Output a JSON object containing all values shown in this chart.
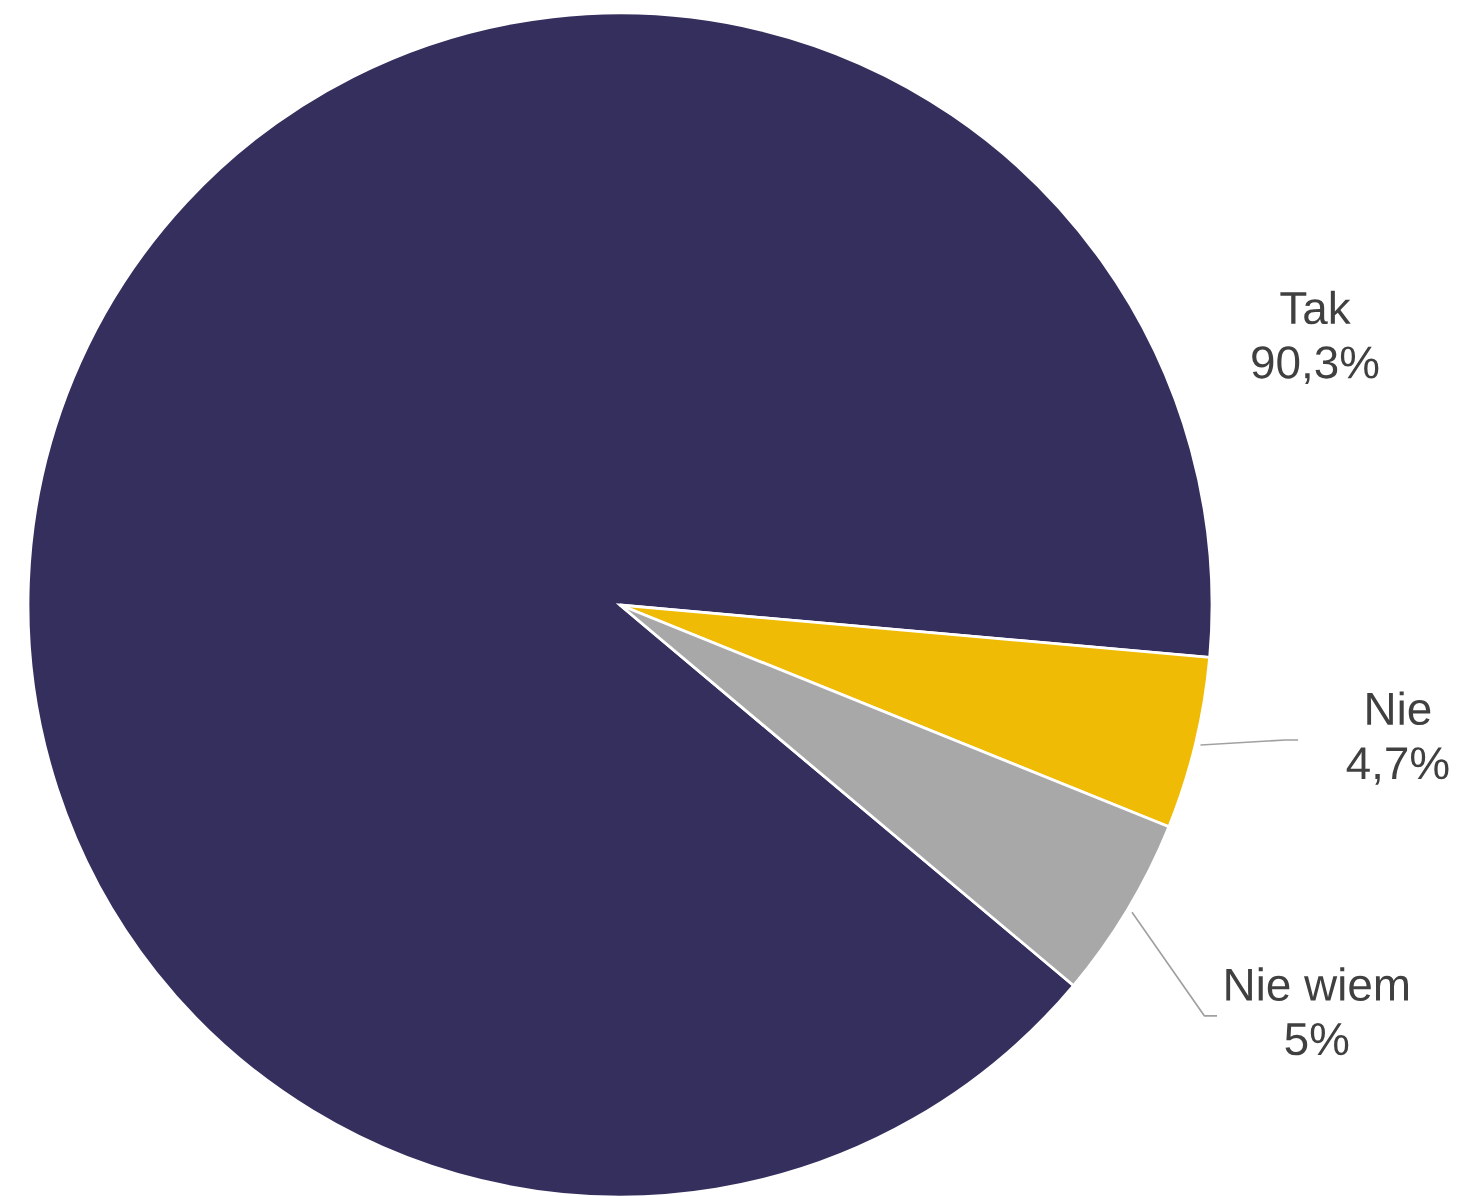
{
  "chart_data": {
    "type": "pie",
    "categories": [
      "Tak",
      "Nie",
      "Nie wiem"
    ],
    "values": [
      90.3,
      4.7,
      5
    ],
    "value_labels": [
      "90,3%",
      "4,7%",
      "5%"
    ],
    "colors": [
      "#352f5e",
      "#f0bb04",
      "#a8a8a8"
    ]
  }
}
